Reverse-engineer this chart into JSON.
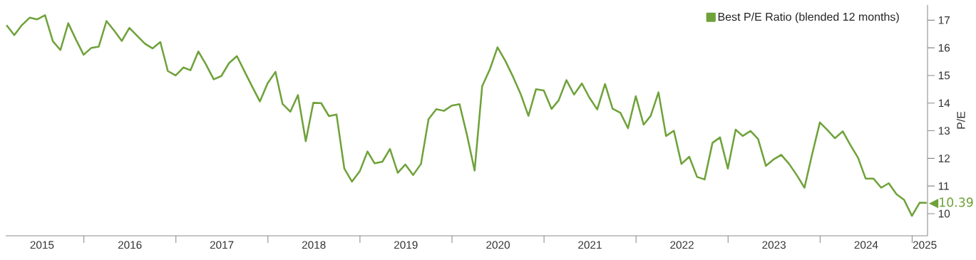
{
  "chart_data": {
    "type": "line",
    "ylabel": "P/E",
    "x": [
      "2015-02-28",
      "2015-03-31",
      "2015-04-30",
      "2015-05-31",
      "2015-06-30",
      "2015-07-31",
      "2015-08-31",
      "2015-09-30",
      "2015-10-31",
      "2015-11-30",
      "2015-12-31",
      "2016-01-31",
      "2016-02-29",
      "2016-03-31",
      "2016-04-30",
      "2016-05-31",
      "2016-06-30",
      "2016-07-31",
      "2016-08-31",
      "2016-09-30",
      "2016-10-31",
      "2016-11-30",
      "2016-12-31",
      "2017-01-31",
      "2017-02-28",
      "2017-03-31",
      "2017-04-30",
      "2017-05-31",
      "2017-06-30",
      "2017-07-31",
      "2017-08-31",
      "2017-09-30",
      "2017-10-31",
      "2017-11-30",
      "2017-12-31",
      "2018-01-31",
      "2018-02-28",
      "2018-03-31",
      "2018-04-30",
      "2018-05-31",
      "2018-06-30",
      "2018-07-31",
      "2018-08-31",
      "2018-09-30",
      "2018-10-31",
      "2018-11-30",
      "2018-12-31",
      "2019-01-31",
      "2019-02-28",
      "2019-03-31",
      "2019-04-30",
      "2019-05-31",
      "2019-06-30",
      "2019-07-31",
      "2019-08-31",
      "2019-09-30",
      "2019-10-31",
      "2019-11-30",
      "2019-12-31",
      "2020-01-31",
      "2020-02-29",
      "2020-03-31",
      "2020-04-30",
      "2020-05-31",
      "2020-06-30",
      "2020-07-31",
      "2020-08-31",
      "2020-09-30",
      "2020-10-31",
      "2020-11-30",
      "2020-12-31",
      "2021-01-31",
      "2021-02-28",
      "2021-03-31",
      "2021-04-30",
      "2021-05-31",
      "2021-06-30",
      "2021-07-31",
      "2021-08-31",
      "2021-09-30",
      "2021-10-31",
      "2021-11-30",
      "2021-12-31",
      "2022-01-31",
      "2022-02-28",
      "2022-03-31",
      "2022-04-30",
      "2022-05-31",
      "2022-06-30",
      "2022-07-31",
      "2022-08-31",
      "2022-09-30",
      "2022-10-31",
      "2022-11-30",
      "2022-12-31",
      "2023-01-31",
      "2023-02-28",
      "2023-03-31",
      "2023-04-30",
      "2023-05-31",
      "2023-06-30",
      "2023-07-31",
      "2023-08-31",
      "2023-09-30",
      "2023-10-31",
      "2023-11-30",
      "2023-12-31",
      "2024-01-31",
      "2024-02-29",
      "2024-03-31",
      "2024-04-30",
      "2024-05-31",
      "2024-06-30",
      "2024-07-31",
      "2024-08-31",
      "2024-09-30",
      "2024-10-31",
      "2024-11-30",
      "2024-12-31",
      "2025-01-31",
      "2025-02-28"
    ],
    "series": [
      {
        "name": "Best P/E Ratio (blended 12 months)",
        "color": "#6fa23a",
        "values": [
          16.82,
          16.46,
          16.82,
          17.09,
          17.03,
          17.18,
          16.24,
          15.92,
          16.89,
          16.31,
          15.75,
          16.0,
          16.04,
          16.97,
          16.63,
          16.25,
          16.72,
          16.43,
          16.15,
          15.98,
          16.21,
          15.16,
          15.0,
          15.29,
          15.19,
          15.87,
          15.4,
          14.86,
          14.98,
          15.45,
          15.7,
          15.15,
          14.59,
          14.06,
          14.72,
          15.13,
          13.97,
          13.69,
          14.29,
          12.62,
          14.01,
          14.0,
          13.53,
          13.59,
          11.63,
          11.16,
          11.53,
          12.25,
          11.82,
          11.88,
          12.34,
          11.48,
          11.78,
          11.4,
          11.8,
          13.42,
          13.78,
          13.72,
          13.91,
          13.96,
          12.87,
          11.56,
          14.61,
          15.23,
          16.02,
          15.53,
          14.95,
          14.33,
          13.54,
          14.5,
          14.46,
          13.79,
          14.1,
          14.83,
          14.31,
          14.71,
          14.2,
          13.77,
          14.69,
          13.8,
          13.65,
          13.09,
          14.25,
          13.22,
          13.54,
          14.39,
          12.81,
          13.0,
          11.8,
          12.06,
          11.33,
          11.24,
          12.56,
          12.76,
          11.63,
          13.04,
          12.81,
          12.99,
          12.7,
          11.73,
          11.96,
          12.13,
          11.8,
          11.4,
          10.94,
          12.14,
          13.3,
          13.02,
          12.73,
          12.98,
          12.49,
          12.02,
          11.27,
          11.27,
          10.94,
          11.1,
          10.7,
          10.5,
          9.92,
          10.4,
          10.39
        ]
      }
    ],
    "xlim": [
      "2015-02-25",
      "2025-03-03"
    ],
    "xticks": [
      {
        "value": "2015-07-19",
        "label": "2015"
      },
      {
        "value": "2016-01-01",
        "label": null
      },
      {
        "value": "2016-07-02",
        "label": "2016"
      },
      {
        "value": "2017-01-01",
        "label": null
      },
      {
        "value": "2017-07-02",
        "label": "2017"
      },
      {
        "value": "2018-01-01",
        "label": null
      },
      {
        "value": "2018-07-02",
        "label": "2018"
      },
      {
        "value": "2019-01-01",
        "label": null
      },
      {
        "value": "2019-07-02",
        "label": "2019"
      },
      {
        "value": "2020-01-01",
        "label": null
      },
      {
        "value": "2020-07-02",
        "label": "2020"
      },
      {
        "value": "2021-01-01",
        "label": null
      },
      {
        "value": "2021-07-02",
        "label": "2021"
      },
      {
        "value": "2022-01-01",
        "label": null
      },
      {
        "value": "2022-07-02",
        "label": "2022"
      },
      {
        "value": "2023-01-01",
        "label": null
      },
      {
        "value": "2023-07-02",
        "label": "2023"
      },
      {
        "value": "2024-01-01",
        "label": null
      },
      {
        "value": "2024-07-02",
        "label": "2024"
      },
      {
        "value": "2025-01-01",
        "label": null
      },
      {
        "value": "2025-02-20",
        "label": "2025"
      }
    ],
    "ylim": [
      9.2,
      17.55
    ],
    "yticks": [
      10,
      11,
      12,
      13,
      14,
      15,
      16,
      17
    ],
    "legend": "top right",
    "line_style": "solid",
    "annotations": [
      {
        "text": "◀10.39",
        "x": "2025-02-28",
        "y": 10.39
      }
    ]
  }
}
